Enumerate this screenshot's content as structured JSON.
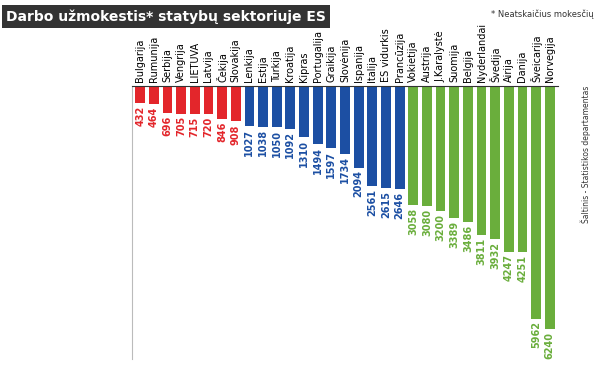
{
  "chart_data": {
    "type": "bar",
    "title": "Darbo užmokestis* statybų sektoriuje ES",
    "subtitle": "* Neatskaičius mokesčių",
    "source": "Šaltinis - Statistikos departamentas",
    "categories": [
      "Bulgarija",
      "Rumunija",
      "Serbija",
      "Vengrija",
      "LIETUVA",
      "Latvija",
      "Čekija",
      "Slovakija",
      "Lenkija",
      "Estija",
      "Turkija",
      "Kroatija",
      "Kipras",
      "Portugalija",
      "Graikija",
      "Slovėnija",
      "Ispanija",
      "Italija",
      "ES vidurkis",
      "Prancūzija",
      "Vokietija",
      "Austrija",
      "J.Karalystė",
      "Suomija",
      "Belgija",
      "Nyderlandai",
      "Švedija",
      "Airija",
      "Danija",
      "Šveicarija",
      "Norvegija"
    ],
    "values": [
      432,
      464,
      696,
      705,
      715,
      720,
      846,
      908,
      1027,
      1038,
      1050,
      1092,
      1310,
      1494,
      1597,
      1734,
      2094,
      2561,
      2615,
      2646,
      3058,
      3080,
      3200,
      3389,
      3486,
      3811,
      3932,
      4247,
      4251,
      5962,
      6240
    ],
    "colors": [
      "#e3262b",
      "#e3262b",
      "#e3262b",
      "#e3262b",
      "#e3262b",
      "#e3262b",
      "#e3262b",
      "#e3262b",
      "#1c4fa3",
      "#1c4fa3",
      "#1c4fa3",
      "#1c4fa3",
      "#1c4fa3",
      "#1c4fa3",
      "#1c4fa3",
      "#1c4fa3",
      "#1c4fa3",
      "#1c4fa3",
      "#1c4fa3",
      "#1c4fa3",
      "#6aae3c",
      "#6aae3c",
      "#6aae3c",
      "#6aae3c",
      "#6aae3c",
      "#6aae3c",
      "#6aae3c",
      "#6aae3c",
      "#6aae3c",
      "#6aae3c",
      "#6aae3c"
    ],
    "ylim": [
      0,
      7000
    ],
    "data_labels": true,
    "tick_labels": "x",
    "grid": false
  }
}
